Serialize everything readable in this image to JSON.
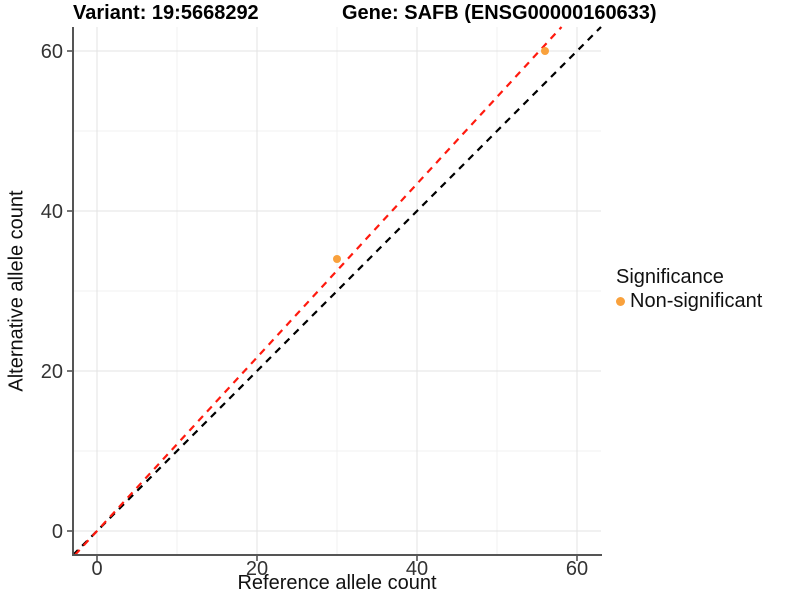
{
  "chart_data": {
    "type": "scatter",
    "titles": {
      "left": "Variant: 19:5668292",
      "right": "Gene: SAFB (ENSG00000160633)"
    },
    "xlabel": "Reference allele count",
    "ylabel": "Alternative allele count",
    "xlim": [
      -3,
      63
    ],
    "ylim": [
      -3,
      63
    ],
    "x_major_ticks": [
      0,
      20,
      40,
      60
    ],
    "x_minor_ticks": [
      10,
      30,
      50
    ],
    "y_major_ticks": [
      0,
      20,
      40,
      60
    ],
    "y_minor_ticks": [
      10,
      30,
      50
    ],
    "grid": true,
    "points": [
      {
        "x": 30,
        "y": 34,
        "significance": "Non-significant"
      },
      {
        "x": 56,
        "y": 60,
        "significance": "Non-significant"
      }
    ],
    "point_color": "#F9A13C",
    "reference_lines": [
      {
        "name": "identity-line",
        "slope": 1.0,
        "intercept": 0,
        "color": "#000000",
        "style": "dashed"
      },
      {
        "name": "fitted-line",
        "slope": 1.085,
        "intercept": 0,
        "color": "#FF1A0E",
        "style": "dashed"
      }
    ],
    "legend": {
      "title": "Significance",
      "items": [
        {
          "label": "Non-significant",
          "color": "#F9A13C"
        }
      ]
    }
  }
}
